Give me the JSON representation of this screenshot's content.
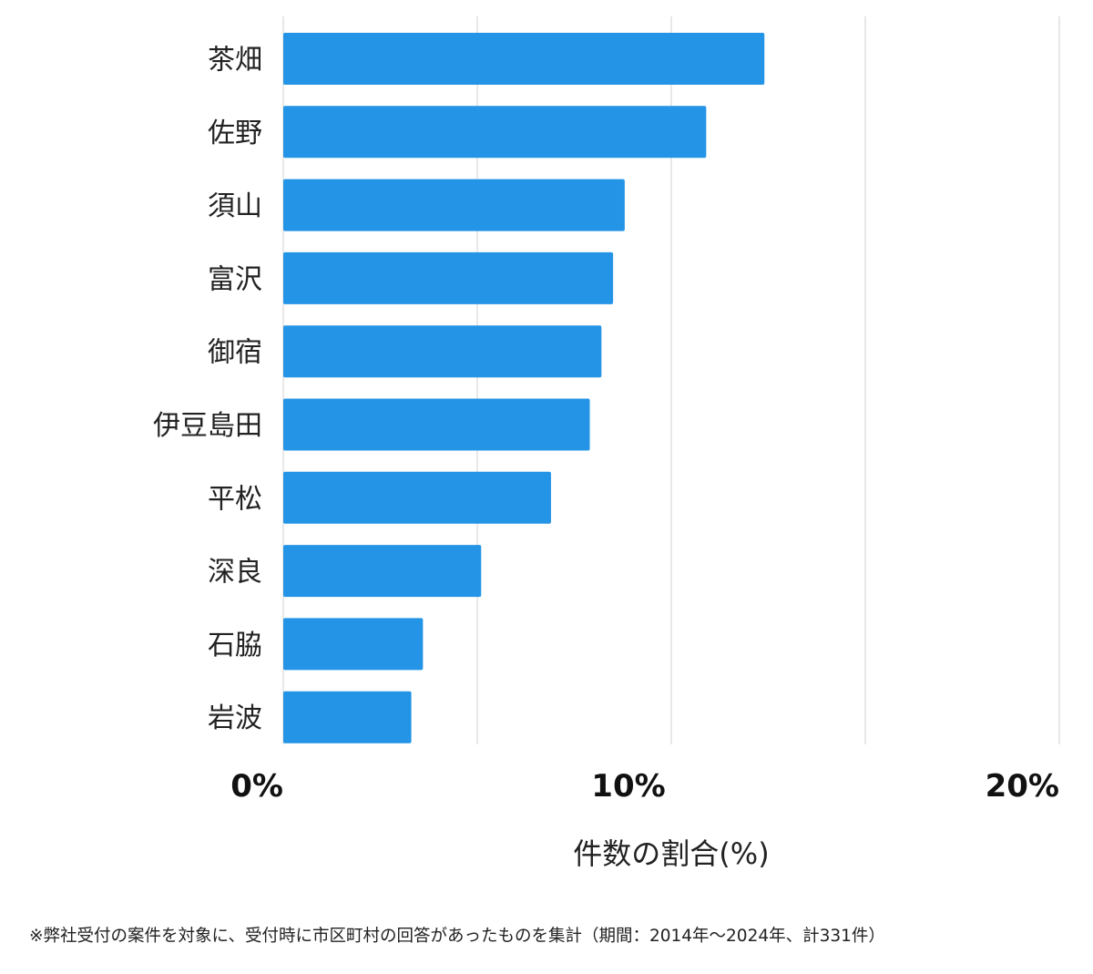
{
  "chart_data": {
    "type": "bar",
    "orientation": "horizontal",
    "categories": [
      "茶畑",
      "佐野",
      "須山",
      "富沢",
      "御宿",
      "伊豆島田",
      "平松",
      "深良",
      "石脇",
      "岩波"
    ],
    "values": [
      12.4,
      10.9,
      8.8,
      8.5,
      8.2,
      7.9,
      6.9,
      5.1,
      3.6,
      3.3
    ],
    "xlim": [
      0,
      20
    ],
    "xticks": [
      {
        "value": 0,
        "label": "0%"
      },
      {
        "value": 10,
        "label": "10%"
      },
      {
        "value": 20,
        "label": "20%"
      }
    ],
    "gridlines": [
      0,
      5,
      10,
      15,
      20
    ],
    "grid": true,
    "xlabel": "件数の割合(%)",
    "ylabel": "",
    "title": "",
    "bar_color": "#2494e6"
  },
  "footnote": "※弊社受付の案件を対象に、受付時に市区町村の回答があったものを集計（期間：2014年～2024年、計331件）"
}
